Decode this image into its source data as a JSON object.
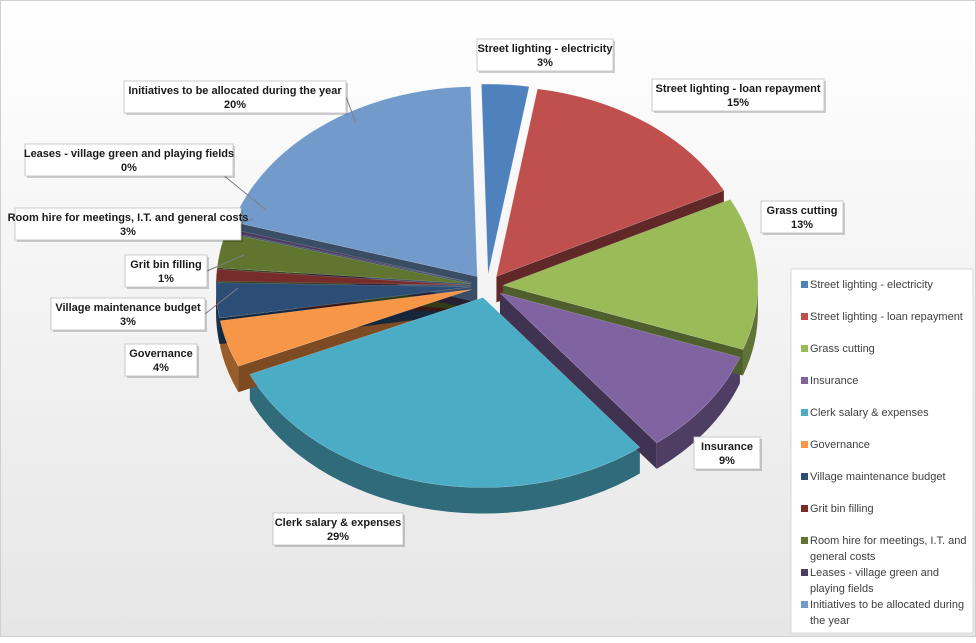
{
  "chart_data": {
    "type": "pie",
    "title": "",
    "legend_position": "right",
    "slices": [
      {
        "name": "Street lighting - electricity",
        "label": [
          "Street lighting - electricity"
        ],
        "value": 3,
        "value_label": "3%",
        "color": "#4f81bd",
        "legend": [
          "Street lighting - electricity"
        ]
      },
      {
        "name": "Street lighting - loan repayment",
        "label": [
          "Street lighting - loan repayment"
        ],
        "value": 15,
        "value_label": "15%",
        "color": "#c0504d",
        "legend": [
          "Street lighting - loan repayment"
        ]
      },
      {
        "name": "Grass cutting",
        "label": [
          "Grass cutting"
        ],
        "value": 13,
        "value_label": "13%",
        "color": "#9bbb59",
        "legend": [
          "Grass cutting"
        ]
      },
      {
        "name": "Insurance",
        "label": [
          "Insurance"
        ],
        "value": 9,
        "value_label": "9%",
        "color": "#8064a2",
        "legend": [
          "Insurance"
        ]
      },
      {
        "name": "Clerk salary & expenses",
        "label": [
          "Clerk salary & expenses"
        ],
        "value": 29,
        "value_label": "29%",
        "color": "#4bacc6",
        "legend": [
          "Clerk salary & expenses"
        ]
      },
      {
        "name": "Governance",
        "label": [
          "Governance"
        ],
        "value": 4,
        "value_label": "4%",
        "color": "#f79646",
        "legend": [
          "Governance"
        ]
      },
      {
        "name": "Village maintenance budget",
        "label": [
          "Village maintenance budget"
        ],
        "value": 3,
        "value_label": "3%",
        "color": "#2c4d75",
        "legend": [
          "Village maintenance budget"
        ]
      },
      {
        "name": "Grit bin filling",
        "label": [
          "Grit bin filling"
        ],
        "value": 1,
        "value_label": "1%",
        "color": "#772c2a",
        "legend": [
          "Grit bin filling"
        ]
      },
      {
        "name": "Room hire for meetings, I.T. and general costs",
        "label": [
          "Room hire for meetings, I.T. and general costs"
        ],
        "value": 3,
        "value_label": "3%",
        "color": "#5f7530",
        "legend": [
          "Room hire for meetings, I.T. and",
          "general costs"
        ]
      },
      {
        "name": "Leases - village green and playing fields",
        "label": [
          "Leases - village green and playing fields"
        ],
        "value": 0.3,
        "value_label": "0%",
        "color": "#4d3b62",
        "legend": [
          "Leases - village green and",
          "playing fields"
        ]
      },
      {
        "name": "Initiatives to be allocated during the year",
        "label": [
          "Initiatives to be allocated during the year"
        ],
        "value": 20,
        "value_label": "20%",
        "color": "#729aca",
        "legend": [
          "Initiatives to be allocated during",
          "the year"
        ]
      }
    ]
  }
}
